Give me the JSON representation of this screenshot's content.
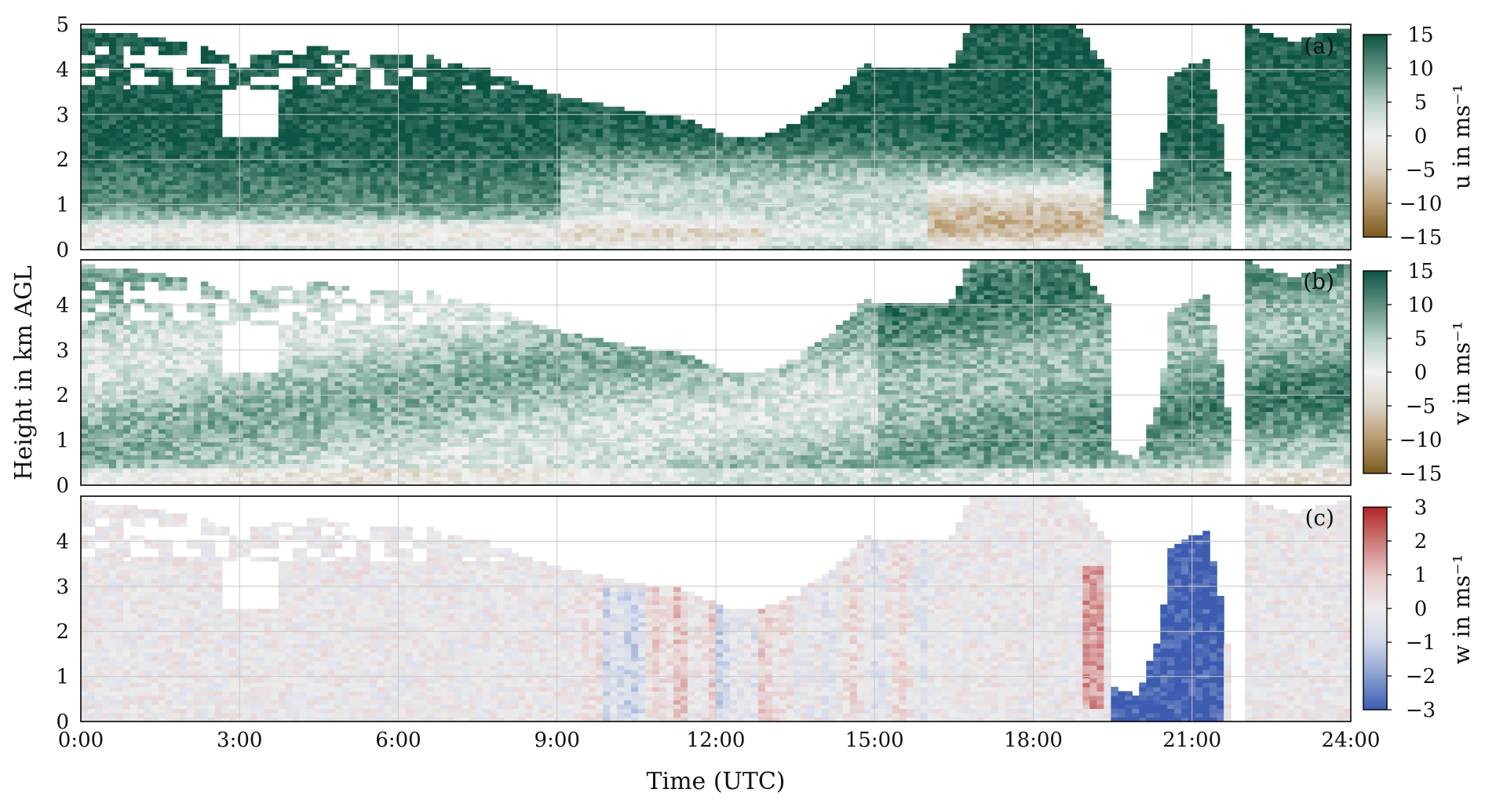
{
  "figure": {
    "xlabel": "Time (UTC)",
    "ylabel": "Height in km AGL",
    "xticks": [
      "0:00",
      "3:00",
      "6:00",
      "9:00",
      "12:00",
      "15:00",
      "18:00",
      "21:00",
      "24:00"
    ]
  },
  "chart_data": [
    {
      "type": "heatmap",
      "panel": "(a)",
      "variable": "u",
      "colorbar_label": "u in ms⁻¹",
      "colorbar_ticks": [
        "15",
        "10",
        "5",
        "0",
        "−5",
        "−10",
        "−15"
      ],
      "clim": [
        -15,
        15
      ],
      "cmap": [
        "#7a5a1c",
        "#b89a6e",
        "#dcd5c8",
        "#f1f1f1",
        "#b9d2c9",
        "#5f9283",
        "#0e5444"
      ],
      "xlim": [
        0,
        24
      ],
      "ylim": [
        0,
        5
      ],
      "yticks": [
        "0",
        "1",
        "2",
        "3",
        "4",
        "5"
      ]
    },
    {
      "type": "heatmap",
      "panel": "(b)",
      "variable": "v",
      "colorbar_label": "v in ms⁻¹",
      "colorbar_ticks": [
        "15",
        "10",
        "5",
        "0",
        "−5",
        "−10",
        "−15"
      ],
      "clim": [
        -15,
        15
      ],
      "cmap": [
        "#7a5a1c",
        "#b89a6e",
        "#dcd5c8",
        "#f1f1f1",
        "#b9d2c9",
        "#5f9283",
        "#0e5444"
      ],
      "xlim": [
        0,
        24
      ],
      "ylim": [
        0,
        5
      ],
      "yticks": [
        "0",
        "1",
        "2",
        "3",
        "4"
      ]
    },
    {
      "type": "heatmap",
      "panel": "(c)",
      "variable": "w",
      "colorbar_label": "w in ms⁻¹",
      "colorbar_ticks": [
        "3",
        "2",
        "1",
        "0",
        "−1",
        "−2",
        "−3"
      ],
      "clim": [
        -3,
        3
      ],
      "cmap": [
        "#3d5cb0",
        "#8a9fd0",
        "#d2d8ea",
        "#ececec",
        "#e7c8c8",
        "#cc7a7a",
        "#b32424"
      ],
      "xlim": [
        0,
        24
      ],
      "ylim": [
        0,
        5
      ],
      "yticks": [
        "0",
        "1",
        "2",
        "3",
        "4"
      ]
    }
  ]
}
